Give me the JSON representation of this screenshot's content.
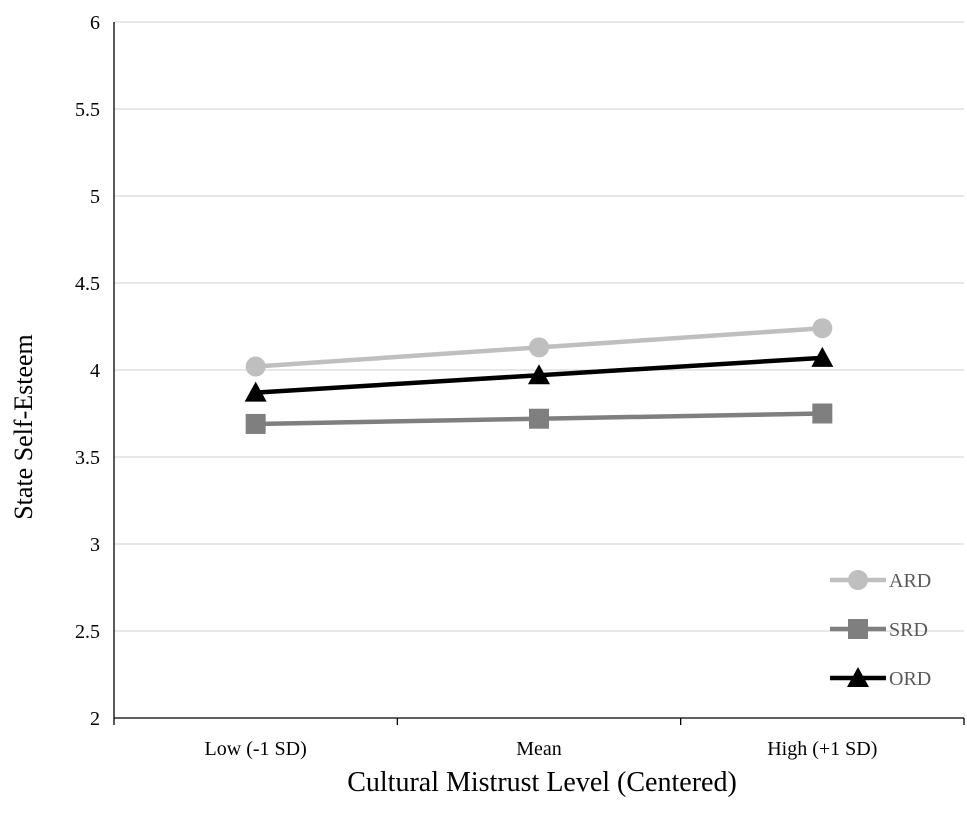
{
  "chart_data": {
    "type": "line",
    "title": "",
    "xlabel": "Cultural Mistrust Level (Centered)",
    "ylabel": "State Self-Esteem",
    "categories": [
      "Low (-1 SD)",
      "Mean",
      "High (+1 SD)"
    ],
    "ylim": [
      2,
      6
    ],
    "yticks": [
      "2",
      "2.5",
      "3",
      "3.5",
      "4",
      "4.5",
      "5",
      "5.5",
      "6"
    ],
    "grid": true,
    "legend_position": "bottom-right",
    "series": [
      {
        "name": "ARD",
        "values": [
          4.02,
          4.13,
          4.24
        ],
        "color": "#bfbfbf",
        "marker": "circle"
      },
      {
        "name": "SRD",
        "values": [
          3.69,
          3.72,
          3.75
        ],
        "color": "#7f7f7f",
        "marker": "square"
      },
      {
        "name": "ORD",
        "values": [
          3.87,
          3.97,
          4.07
        ],
        "color": "#000000",
        "marker": "triangle"
      }
    ]
  }
}
